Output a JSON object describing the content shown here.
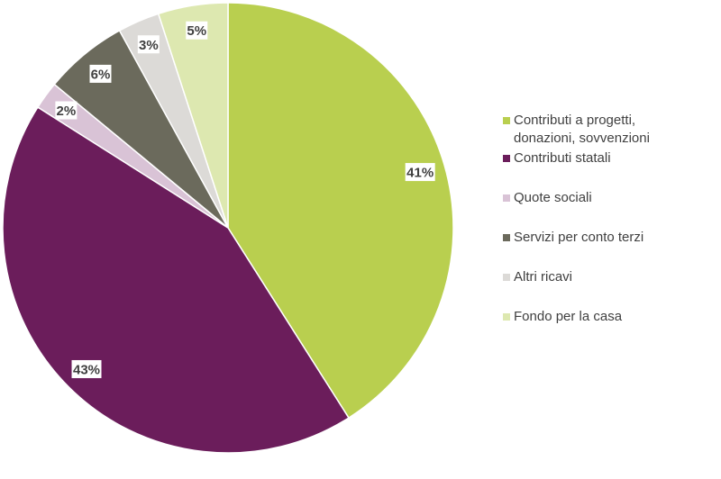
{
  "chart_data": {
    "type": "pie",
    "start": "top",
    "direction": "clockwise",
    "legend_position": "right",
    "slices": [
      {
        "name": "Contributi a progetti, donazioni, sovvenzioni",
        "value": 41,
        "label": "41%",
        "color": "#b9cf4f"
      },
      {
        "name": "Contributi statali",
        "value": 43,
        "label": "43%",
        "color": "#6b1d5b"
      },
      {
        "name": "Quote sociali",
        "value": 2,
        "label": "2%",
        "color": "#d9c3d6"
      },
      {
        "name": "Servizi per conto terzi",
        "value": 6,
        "label": "6%",
        "color": "#6b6a5c"
      },
      {
        "name": "Altri ricavi",
        "value": 3,
        "label": "3%",
        "color": "#dcdad7"
      },
      {
        "name": "Fondo per la casa",
        "value": 5,
        "label": "5%",
        "color": "#dde8b0"
      }
    ]
  }
}
